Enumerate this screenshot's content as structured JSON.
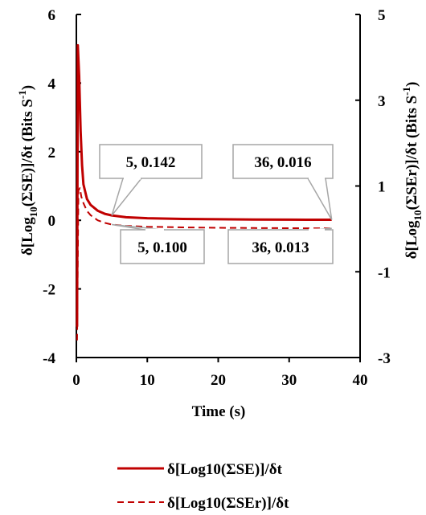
{
  "chart_data": {
    "type": "line",
    "xlabel": "Time (s)",
    "ylabel_left": {
      "pre": "δ[Log",
      "sub": "10",
      "mid": "(ΣSE)]/δt (Bits S",
      "sup": "-1",
      "post": ")"
    },
    "ylabel_right": {
      "pre": "δ[Log",
      "sub": "10",
      "mid": "(ΣSEr)]/δt (Bits S",
      "sup": "-1",
      "post": ")"
    },
    "xlim": [
      0,
      40
    ],
    "ylim_left": [
      -4,
      6
    ],
    "ylim_right": [
      -3,
      5
    ],
    "x_ticks": [
      "0",
      "10",
      "20",
      "30",
      "40"
    ],
    "y_ticks_left": [
      "-4",
      "-2",
      "0",
      "2",
      "4",
      "6"
    ],
    "y_ticks_right": [
      "-3",
      "-1",
      "1",
      "3",
      "5"
    ],
    "series": [
      {
        "name": "δ[Log10(ΣSE)]/δt",
        "axis": "left",
        "style": "solid",
        "color": "#c00000",
        "points": [
          [
            0.1,
            -3.1
          ],
          [
            0.2,
            5.1
          ],
          [
            0.4,
            4.2
          ],
          [
            0.6,
            2.6
          ],
          [
            0.8,
            1.6
          ],
          [
            1,
            1.05
          ],
          [
            1.5,
            0.62
          ],
          [
            2,
            0.45
          ],
          [
            3,
            0.28
          ],
          [
            4,
            0.19
          ],
          [
            5,
            0.142
          ],
          [
            7,
            0.09
          ],
          [
            10,
            0.06
          ],
          [
            15,
            0.04
          ],
          [
            20,
            0.03
          ],
          [
            25,
            0.024
          ],
          [
            30,
            0.019
          ],
          [
            36,
            0.016
          ]
        ]
      },
      {
        "name": "δ[Log10(ΣSEr)]/δt",
        "axis": "right",
        "style": "dashed",
        "color": "#c00000",
        "points": [
          [
            0.1,
            -2.6
          ],
          [
            0.3,
            0.9
          ],
          [
            0.5,
            0.95
          ],
          [
            0.7,
            0.75
          ],
          [
            1,
            0.6
          ],
          [
            1.5,
            0.42
          ],
          [
            2,
            0.32
          ],
          [
            3,
            0.2
          ],
          [
            4,
            0.14
          ],
          [
            5,
            0.1
          ],
          [
            7,
            0.07
          ],
          [
            10,
            0.05
          ],
          [
            15,
            0.035
          ],
          [
            20,
            0.025
          ],
          [
            25,
            0.02
          ],
          [
            30,
            0.016
          ],
          [
            36,
            0.013
          ]
        ]
      }
    ],
    "annotations": [
      {
        "text": "5, 0.142",
        "series": 0,
        "at": [
          5,
          0.142
        ]
      },
      {
        "text": "36, 0.016",
        "series": 0,
        "at": [
          36,
          0.016
        ]
      },
      {
        "text": "5, 0.100",
        "series": 1,
        "at": [
          5,
          0.1
        ]
      },
      {
        "text": "36, 0.013",
        "series": 1,
        "at": [
          36,
          0.013
        ]
      }
    ],
    "legend": {
      "position": "bottom"
    }
  }
}
